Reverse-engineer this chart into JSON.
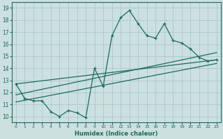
{
  "xlabel": "Humidex (Indice chaleur)",
  "ylabel": "",
  "xlim": [
    -0.5,
    23.5
  ],
  "ylim": [
    9.5,
    19.5
  ],
  "xticks": [
    0,
    1,
    2,
    3,
    4,
    5,
    6,
    7,
    8,
    9,
    10,
    11,
    12,
    13,
    14,
    15,
    16,
    17,
    18,
    19,
    20,
    21,
    22,
    23
  ],
  "yticks": [
    10,
    11,
    12,
    13,
    14,
    15,
    16,
    17,
    18,
    19
  ],
  "bg_color": "#cce0e0",
  "grid_color": "#aac8c8",
  "line_color": "#1a6b5a",
  "data_x": [
    0,
    1,
    2,
    3,
    4,
    5,
    6,
    7,
    8,
    9,
    10,
    11,
    12,
    13,
    14,
    15,
    16,
    17,
    18,
    19,
    20,
    21,
    22,
    23
  ],
  "data_y": [
    12.7,
    11.5,
    11.3,
    11.3,
    10.4,
    10.0,
    10.5,
    10.3,
    9.9,
    14.0,
    12.5,
    16.7,
    18.2,
    18.8,
    17.7,
    16.7,
    16.5,
    17.7,
    16.3,
    16.1,
    15.6,
    14.9,
    14.6,
    14.7
  ],
  "trend1_x": [
    0,
    23
  ],
  "trend1_y": [
    12.7,
    14.7
  ],
  "trend2_x": [
    0,
    23
  ],
  "trend2_y": [
    11.8,
    15.3
  ],
  "trend3_x": [
    0,
    23
  ],
  "trend3_y": [
    11.2,
    14.4
  ]
}
